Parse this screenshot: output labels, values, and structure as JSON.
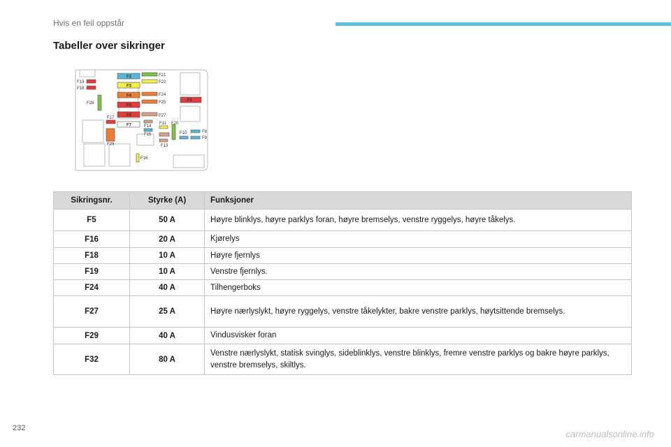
{
  "header": {
    "section_title": "Hvis en feil oppstår"
  },
  "page": {
    "title": "Tabeller over sikringer",
    "number": "232"
  },
  "diagram": {
    "labels": [
      "F1",
      "F2",
      "F3",
      "F4",
      "F5",
      "F6",
      "F7",
      "F8",
      "F9",
      "F10",
      "F11",
      "F13",
      "F14",
      "F15",
      "F16",
      "F17",
      "F18",
      "F19",
      "F20",
      "F21",
      "F22",
      "F24",
      "F25",
      "F27",
      "F28",
      "F29"
    ],
    "colors": {
      "blue": "#5bb5d9",
      "yellow": "#f2ed4a",
      "orange": "#ec7d35",
      "red": "#e03c3c",
      "green": "#7cc243",
      "tan": "#d8a089",
      "white": "#ffffff"
    }
  },
  "table": {
    "headers": {
      "num": "Sikringsnr.",
      "amp": "Styrke (A)",
      "func": "Funksjoner"
    },
    "rows": [
      {
        "num": "F5",
        "amp": "50 A",
        "func": "Høyre blinklys, høyre parklys foran, høyre bremselys, venstre ryggelys, høyre tåkelys."
      },
      {
        "num": "F16",
        "amp": "20 A",
        "func": "Kjørelys"
      },
      {
        "num": "F18",
        "amp": "10 A",
        "func": "Høyre fjernlys"
      },
      {
        "num": "F19",
        "amp": "10 A",
        "func": "Venstre fjernlys."
      },
      {
        "num": "F24",
        "amp": "40 A",
        "func": "Tilhengerboks"
      },
      {
        "num": "F27",
        "amp": "25 A",
        "func": "Høyre nærlyslykt, høyre ryggelys, venstre tåkelykter, bakre venstre parklys, høytsittende bremselys."
      },
      {
        "num": "F29",
        "amp": "40 A",
        "func": "Vindusvisker foran"
      },
      {
        "num": "F32",
        "amp": "80 A",
        "func": "Venstre nærlyslykt, statisk svinglys, sideblinklys, venstre blinklys, fremre venstre parklys og bakre høyre parklys, venstre bremselys, skiltlys."
      }
    ]
  },
  "watermark": "carmanualsonline.info"
}
